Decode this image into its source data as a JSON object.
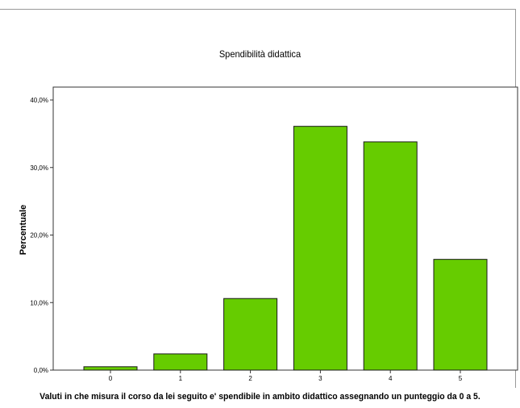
{
  "chart_data": {
    "type": "bar",
    "title": "Spendibilità didattica",
    "xlabel": "Valuti in che misura il corso da lei seguito e' spendibile in ambito didattico assegnando un punteggio da 0 a 5.",
    "ylabel": "Percentuale",
    "categories": [
      "0",
      "1",
      "2",
      "3",
      "4",
      "5"
    ],
    "values": [
      0.5,
      2.4,
      10.6,
      36.1,
      33.8,
      16.4
    ],
    "ylim": [
      0,
      40
    ],
    "yticks": [
      0,
      10,
      20,
      30,
      40
    ],
    "ytick_labels": [
      "0,0%",
      "10,0%",
      "20,0%",
      "30,0%",
      "40,0%"
    ],
    "grid": false,
    "legend": "none",
    "bar_color": "#66cc00",
    "bar_edge_color": "#1a1a1a"
  }
}
